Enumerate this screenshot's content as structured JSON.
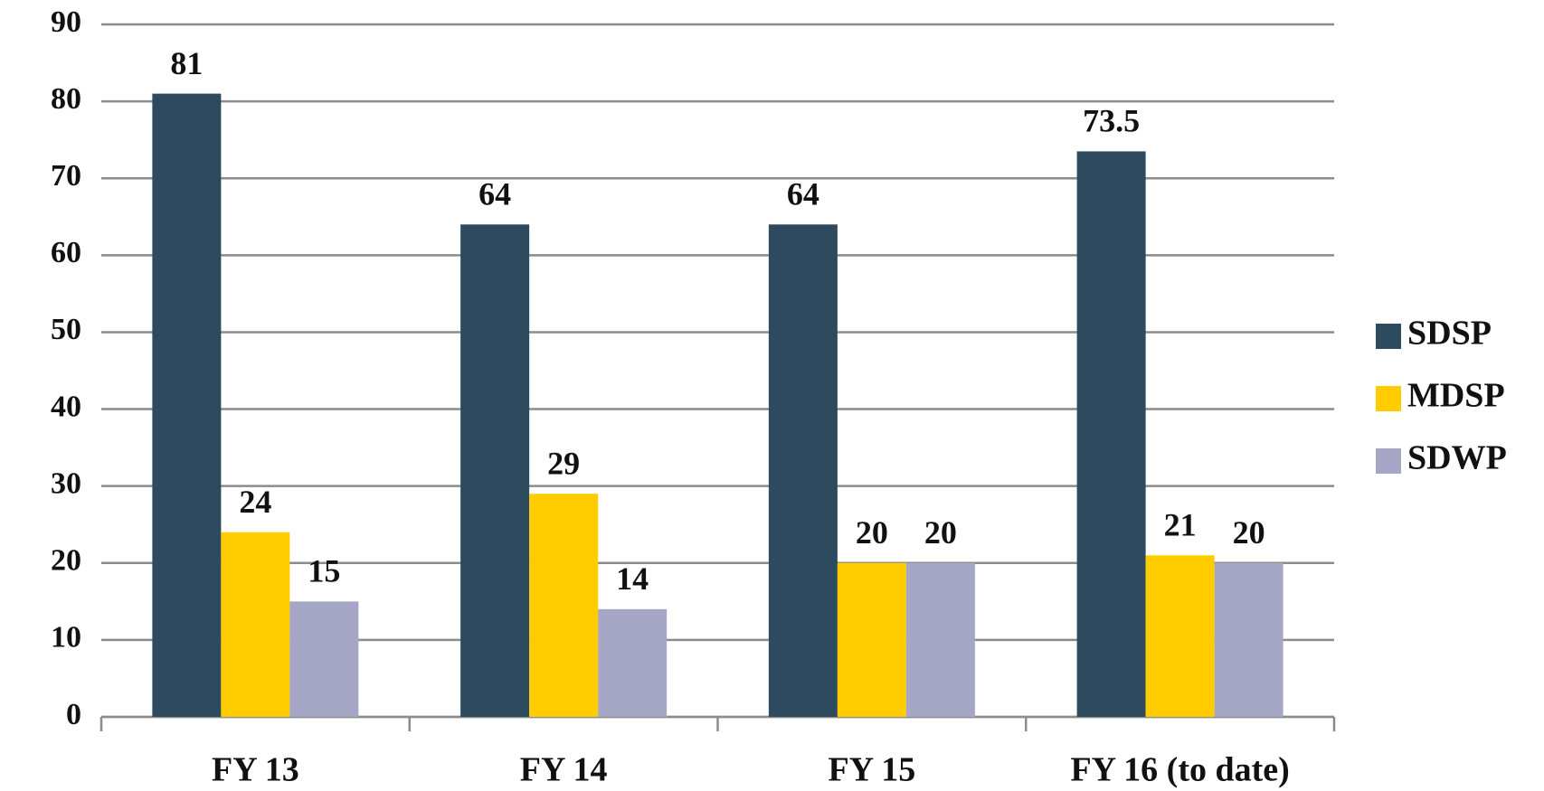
{
  "chart_data": {
    "type": "bar",
    "categories": [
      "FY 13",
      "FY 14",
      "FY 15",
      "FY 16 (to date)"
    ],
    "series": [
      {
        "name": "SDSP",
        "color": "#2d4a5e",
        "values": [
          81,
          64,
          64,
          73.5
        ]
      },
      {
        "name": "MDSP",
        "color": "#ffcc00",
        "values": [
          24,
          29,
          20,
          21
        ]
      },
      {
        "name": "SDWP",
        "color": "#a6a6c6",
        "values": [
          15,
          14,
          20,
          20
        ]
      }
    ],
    "ylim": [
      0,
      90
    ],
    "yticks": [
      0,
      10,
      20,
      30,
      40,
      50,
      60,
      70,
      80,
      90
    ],
    "grid": true,
    "legend": "right",
    "data_labels": true
  }
}
